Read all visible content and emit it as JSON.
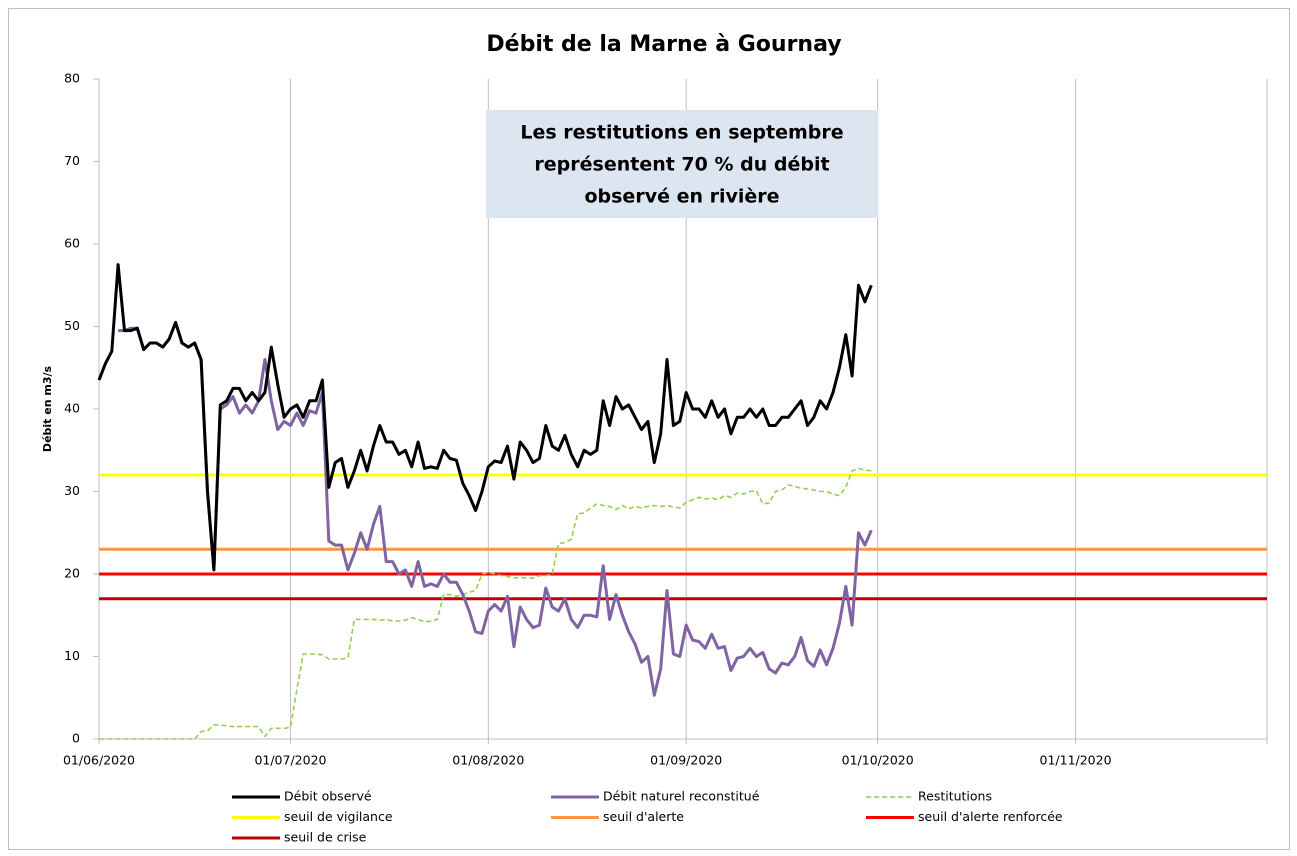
{
  "chart_data": {
    "type": "line",
    "title": "Débit de la Marne à Gournay",
    "y_label": "Débit en m3/s",
    "annotation": [
      "Les restitutions en septembre",
      "représentent 70 % du débit",
      "observé en rivière"
    ],
    "x": [
      "01/06/2020",
      "02/06/2020",
      "03/06/2020",
      "04/06/2020",
      "05/06/2020",
      "06/06/2020",
      "07/06/2020",
      "08/06/2020",
      "09/06/2020",
      "10/06/2020",
      "11/06/2020",
      "12/06/2020",
      "13/06/2020",
      "14/06/2020",
      "15/06/2020",
      "16/06/2020",
      "17/06/2020",
      "18/06/2020",
      "19/06/2020",
      "20/06/2020",
      "21/06/2020",
      "22/06/2020",
      "23/06/2020",
      "24/06/2020",
      "25/06/2020",
      "26/06/2020",
      "27/06/2020",
      "28/06/2020",
      "29/06/2020",
      "30/06/2020",
      "01/07/2020",
      "02/07/2020",
      "03/07/2020",
      "04/07/2020",
      "05/07/2020",
      "06/07/2020",
      "07/07/2020",
      "08/07/2020",
      "09/07/2020",
      "10/07/2020",
      "11/07/2020",
      "12/07/2020",
      "13/07/2020",
      "14/07/2020",
      "15/07/2020",
      "16/07/2020",
      "17/07/2020",
      "18/07/2020",
      "19/07/2020",
      "20/07/2020",
      "21/07/2020",
      "22/07/2020",
      "23/07/2020",
      "24/07/2020",
      "25/07/2020",
      "26/07/2020",
      "27/07/2020",
      "28/07/2020",
      "29/07/2020",
      "30/07/2020",
      "31/07/2020",
      "01/08/2020",
      "02/08/2020",
      "03/08/2020",
      "04/08/2020",
      "05/08/2020",
      "06/08/2020",
      "07/08/2020",
      "08/08/2020",
      "09/08/2020",
      "10/08/2020",
      "11/08/2020",
      "12/08/2020",
      "13/08/2020",
      "14/08/2020",
      "15/08/2020",
      "16/08/2020",
      "17/08/2020",
      "18/08/2020",
      "19/08/2020",
      "20/08/2020",
      "21/08/2020",
      "22/08/2020",
      "23/08/2020",
      "24/08/2020",
      "25/08/2020",
      "26/08/2020",
      "27/08/2020",
      "28/08/2020",
      "29/08/2020",
      "30/08/2020",
      "31/08/2020",
      "01/09/2020",
      "02/09/2020",
      "03/09/2020",
      "04/09/2020",
      "05/09/2020",
      "06/09/2020",
      "07/09/2020",
      "08/09/2020",
      "09/09/2020",
      "10/09/2020",
      "11/09/2020",
      "12/09/2020",
      "13/09/2020",
      "14/09/2020",
      "15/09/2020",
      "16/09/2020",
      "17/09/2020",
      "18/09/2020",
      "19/09/2020",
      "20/09/2020",
      "21/09/2020",
      "22/09/2020",
      "23/09/2020",
      "24/09/2020",
      "25/09/2020",
      "26/09/2020",
      "27/09/2020",
      "28/09/2020",
      "29/09/2020",
      "30/09/2020"
    ],
    "series": [
      {
        "name": "Débit observé",
        "color": "#000000",
        "dash": false,
        "values": [
          43.5,
          45.5,
          47,
          57.5,
          49.5,
          49.5,
          49.8,
          47.2,
          48,
          48,
          47.5,
          48.5,
          50.5,
          48,
          47.5,
          48,
          46,
          30,
          20.5,
          40.5,
          41,
          42.5,
          42.5,
          41,
          42,
          41,
          42,
          47.5,
          43,
          39,
          40,
          40.5,
          39,
          41,
          41,
          43.5,
          30.5,
          33.5,
          34,
          30.5,
          32.5,
          35,
          32.5,
          35.5,
          38,
          36,
          36,
          34.5,
          35,
          33,
          36,
          32.8,
          33,
          32.8,
          35,
          34,
          33.8,
          31,
          29.5,
          27.7,
          30,
          33,
          33.7,
          33.5,
          35.5,
          31.5,
          36,
          35,
          33.5,
          34,
          38,
          35.5,
          35,
          36.8,
          34.5,
          33,
          35,
          34.5,
          35,
          41,
          38,
          41.5,
          40,
          40.5,
          39,
          37.5,
          38.5,
          33.5,
          37,
          46,
          38,
          38.5,
          42,
          40,
          40,
          39,
          41,
          39,
          40,
          37,
          39,
          39,
          40,
          39,
          40,
          38,
          38,
          39,
          39,
          40,
          41,
          38,
          39,
          41,
          40,
          42,
          45,
          49,
          44,
          55,
          53,
          55
        ]
      },
      {
        "name": "Débit naturel reconstitué",
        "color": "#8064a2",
        "dash": false,
        "values": [
          null,
          null,
          null,
          49.5,
          49.5,
          49.8,
          49.8,
          47.2,
          48,
          48,
          47.5,
          48.5,
          50.5,
          48,
          47.5,
          48,
          46,
          30,
          20.5,
          40,
          40.5,
          41.5,
          39.5,
          40.5,
          39.5,
          41,
          46,
          41,
          37.5,
          38.5,
          38,
          39.5,
          38,
          39.8,
          39.5,
          42,
          24,
          23.5,
          23.5,
          20.5,
          22.5,
          25,
          23,
          26,
          28.2,
          21.5,
          21.5,
          20,
          20.5,
          18.5,
          21.5,
          18.5,
          18.8,
          18.5,
          20,
          19,
          19,
          17.5,
          15.5,
          13,
          12.8,
          15.5,
          16.3,
          15.5,
          17.3,
          11.2,
          16,
          14.5,
          13.5,
          13.8,
          18.3,
          16,
          15.5,
          17,
          14.5,
          13.5,
          15,
          15,
          14.8,
          21,
          14.5,
          17.5,
          15,
          13,
          11.5,
          9.3,
          10,
          5.3,
          8.5,
          18,
          10.3,
          10,
          13.8,
          12,
          11.8,
          11,
          12.7,
          11,
          11.2,
          8.3,
          9.8,
          10,
          11,
          10,
          10.5,
          8.5,
          8,
          9.2,
          9,
          10,
          12.3,
          9.5,
          8.8,
          10.8,
          9,
          11,
          14,
          18.5,
          13.8,
          25,
          23.5,
          25.3
        ]
      },
      {
        "name": "Restitutions",
        "color": "#92d050",
        "dash": true,
        "values": [
          0,
          0,
          0,
          0,
          0,
          0,
          0,
          0,
          0,
          0,
          0,
          0,
          0,
          0,
          0,
          0,
          0.9,
          1,
          1.7,
          1.7,
          1.6,
          1.5,
          1.5,
          1.5,
          1.5,
          1.5,
          0.3,
          1.3,
          1.3,
          1.3,
          1.4,
          6,
          10.3,
          10.3,
          10.3,
          10.2,
          9.7,
          9.7,
          9.7,
          9.8,
          14.5,
          14.5,
          14.5,
          14.5,
          14.4,
          14.5,
          14.3,
          14.3,
          14.4,
          14.7,
          14.5,
          14.2,
          14.3,
          14.5,
          17.5,
          17.5,
          17.3,
          17.5,
          17.8,
          18,
          20,
          20.2,
          20,
          19.8,
          19.7,
          19.5,
          19.6,
          19.5,
          19.5,
          19.8,
          19.8,
          20,
          23.7,
          23.8,
          24.2,
          27.3,
          27.4,
          28,
          28.5,
          28.3,
          28.2,
          27.8,
          28.3,
          27.9,
          28.2,
          28,
          28.2,
          28.3,
          28.2,
          28.3,
          28.1,
          28,
          28.7,
          29,
          29.3,
          29.1,
          29.2,
          29,
          29.5,
          29.3,
          29.8,
          29.7,
          30,
          30.1,
          28.5,
          28.6,
          30,
          30.2,
          30.8,
          30.6,
          30.4,
          30.3,
          30.2,
          30,
          30,
          29.7,
          29.5,
          30.5,
          32.5,
          32.8,
          32.6,
          32.5
        ]
      }
    ],
    "thresholds": [
      {
        "name": "seuil de vigilance",
        "color": "#ffff00",
        "value": 32
      },
      {
        "name": "seuil d'alerte",
        "color": "#f79646",
        "value": 23
      },
      {
        "name": "seuil d'alerte renforcée",
        "color": "#ff0000",
        "value": 20
      },
      {
        "name": "seuil de crise",
        "color": "#c00000",
        "value": 17
      }
    ],
    "xlim": [
      "01/06/2020",
      "01/12/2020"
    ],
    "xticks": [
      "01/06/2020",
      "01/07/2020",
      "01/08/2020",
      "01/09/2020",
      "01/10/2020",
      "01/11/2020"
    ],
    "ylim": [
      0,
      80
    ],
    "yticks": [
      0,
      10,
      20,
      30,
      40,
      50,
      60,
      70,
      80
    ],
    "grid": "x",
    "legend": "bottom"
  }
}
